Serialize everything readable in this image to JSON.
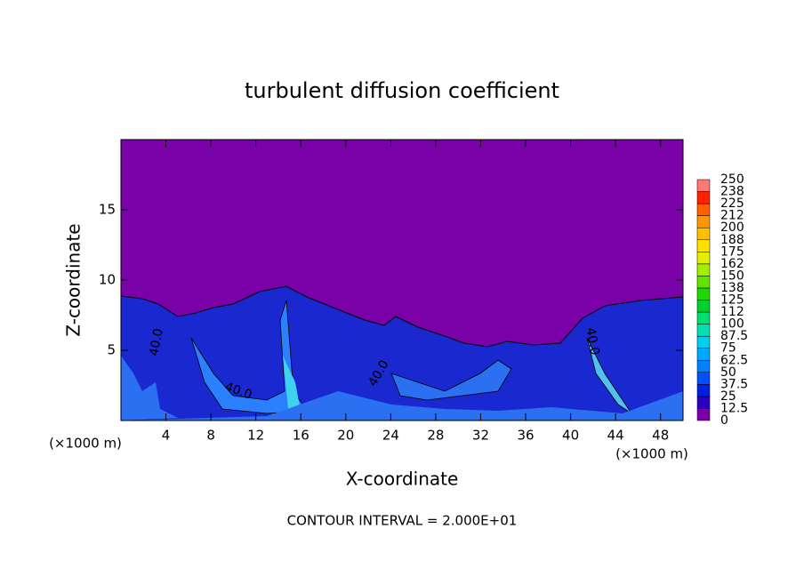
{
  "chart_data": {
    "type": "contour",
    "title": "turbulent diffusion coefficient",
    "x_label": "X-coordinate",
    "y_label": "Z-coordinate",
    "x_unit": "(×1000 m)",
    "x_unit_right": "(×1000 m)",
    "footer": "CONTOUR INTERVAL = 2.000E+01",
    "contour_labels": [
      "40.0",
      "40.0",
      "40.0",
      "40.0"
    ],
    "xlim": [
      0,
      50
    ],
    "ylim": [
      0,
      20
    ],
    "xticks": [
      4,
      8,
      12,
      16,
      20,
      24,
      28,
      32,
      36,
      40,
      44,
      48
    ],
    "yticks": [
      5,
      10,
      15
    ],
    "colorbar": {
      "levels": [
        0,
        12.5,
        25,
        37.5,
        50,
        62.5,
        75,
        87.5,
        100,
        {
          "value": 112.5,
          "label": "112"
        },
        125,
        {
          "value": 137.5,
          "label": "138"
        },
        150,
        {
          "value": 162.5,
          "label": "162"
        },
        175,
        {
          "value": 187.5,
          "label": "188"
        },
        200,
        {
          "value": 212.5,
          "label": "212"
        },
        225,
        {
          "value": 237.5,
          "label": "238"
        },
        250
      ],
      "colors": [
        "#7a00a8",
        "#2a00c0",
        "#0020e0",
        "#0050ff",
        "#0080ff",
        "#00a8ff",
        "#00d0f0",
        "#00e0b0",
        "#00e070",
        "#00d030",
        "#20d800",
        "#60e400",
        "#a0f000",
        "#e0f000",
        "#ffe000",
        "#ffc000",
        "#ff9800",
        "#ff6000",
        "#ff2000",
        "#ff7878"
      ]
    }
  }
}
